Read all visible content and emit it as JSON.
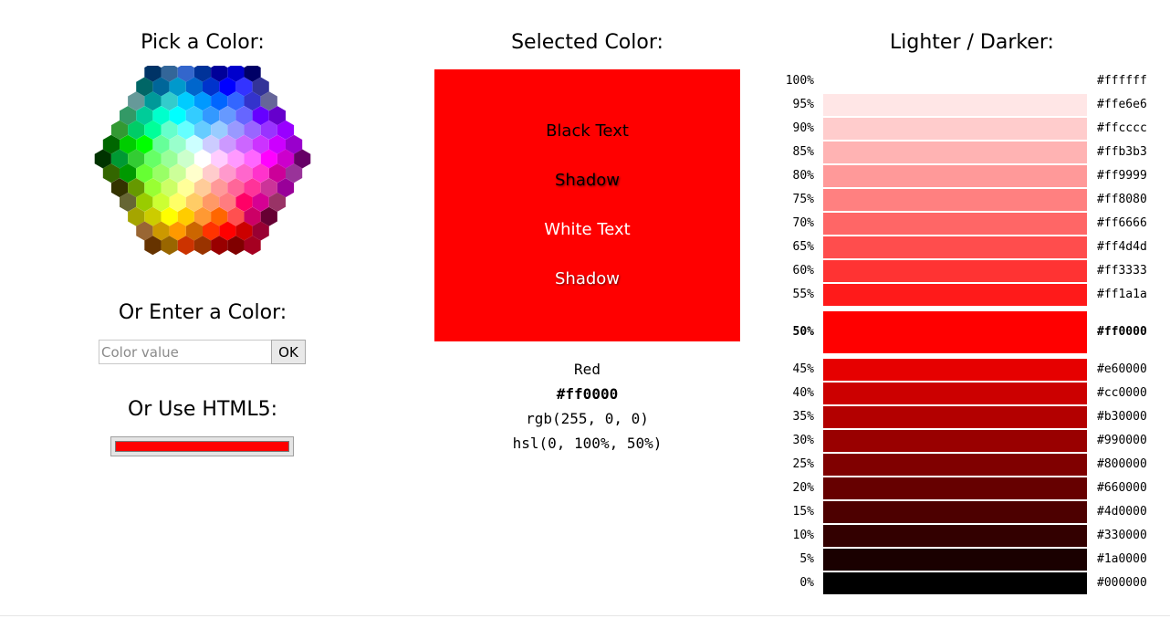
{
  "headings": {
    "pick": "Pick a Color:",
    "selected": "Selected Color:",
    "lighter_darker": "Lighter / Darker:",
    "enter": "Or Enter a Color:",
    "html5": "Or Use HTML5:"
  },
  "input": {
    "placeholder": "Color value",
    "value": "",
    "button_label": "OK"
  },
  "html5_picker": {
    "value": "#ff0000"
  },
  "selected": {
    "color": "#ff0000",
    "samples": [
      "Black Text",
      "Shadow",
      "White Text",
      "Shadow"
    ],
    "name": "Red",
    "hex": "#ff0000",
    "rgb": "rgb(255, 0, 0)",
    "hsl": "hsl(0, 100%, 50%)"
  },
  "colormap": {
    "selected_color": "#ff0000",
    "rows": [
      [
        "#003366",
        "#336699",
        "#3366cc",
        "#003399",
        "#000099",
        "#0000cc",
        "#000066"
      ],
      [
        "#006666",
        "#006699",
        "#0099cc",
        "#0066cc",
        "#0033cc",
        "#0000ff",
        "#3333ff",
        "#333399"
      ],
      [
        "#669999",
        "#009999",
        "#33cccc",
        "#00ccff",
        "#0099ff",
        "#0066ff",
        "#3366ff",
        "#3333cc",
        "#666699"
      ],
      [
        "#339966",
        "#00cc99",
        "#00ffcc",
        "#00ffff",
        "#33ccff",
        "#3399ff",
        "#6699ff",
        "#6666ff",
        "#6600ff",
        "#6600cc"
      ],
      [
        "#339933",
        "#00cc66",
        "#00ff99",
        "#66ffcc",
        "#66ffff",
        "#66ccff",
        "#99ccff",
        "#9999ff",
        "#9966ff",
        "#9933ff",
        "#9900ff"
      ],
      [
        "#006600",
        "#00cc00",
        "#00ff00",
        "#66ff99",
        "#99ffcc",
        "#ccffff",
        "#ccccff",
        "#cc99ff",
        "#cc66ff",
        "#cc33ff",
        "#cc00ff",
        "#9900cc"
      ],
      [
        "#003300",
        "#009933",
        "#33cc33",
        "#66ff66",
        "#99ff99",
        "#ccffcc",
        "#ffffff",
        "#ffccff",
        "#ff99ff",
        "#ff66ff",
        "#ff00ff",
        "#cc00cc",
        "#660066"
      ],
      [
        "#336600",
        "#009900",
        "#66ff33",
        "#99ff66",
        "#ccff99",
        "#ffffcc",
        "#ffcccc",
        "#ff99cc",
        "#ff66cc",
        "#ff33cc",
        "#cc0099",
        "#993399"
      ],
      [
        "#333300",
        "#669900",
        "#99ff33",
        "#ccff66",
        "#ffff99",
        "#ffcc99",
        "#ff9999",
        "#ff6699",
        "#ff3399",
        "#cc3399",
        "#990099"
      ],
      [
        "#666633",
        "#99cc00",
        "#ccff33",
        "#ffff66",
        "#ffcc66",
        "#ff9966",
        "#ff7c80",
        "#ff0066",
        "#d60093",
        "#993366"
      ],
      [
        "#a5a500",
        "#cccc00",
        "#ffff00",
        "#ffcc00",
        "#ff9933",
        "#ff6600",
        "#ff5050",
        "#cc0066",
        "#660033"
      ],
      [
        "#996633",
        "#cc9900",
        "#ff9900",
        "#cc6600",
        "#ff3300",
        "#ff0000",
        "#cc0000",
        "#990033"
      ],
      [
        "#663300",
        "#996600",
        "#cc3300",
        "#993300",
        "#990000",
        "#800000",
        "#a50021"
      ]
    ]
  },
  "shades": [
    {
      "pct": "100%",
      "hex": "#ffffff"
    },
    {
      "pct": "95%",
      "hex": "#ffe6e6"
    },
    {
      "pct": "90%",
      "hex": "#ffcccc"
    },
    {
      "pct": "85%",
      "hex": "#ffb3b3"
    },
    {
      "pct": "80%",
      "hex": "#ff9999"
    },
    {
      "pct": "75%",
      "hex": "#ff8080"
    },
    {
      "pct": "70%",
      "hex": "#ff6666"
    },
    {
      "pct": "65%",
      "hex": "#ff4d4d"
    },
    {
      "pct": "60%",
      "hex": "#ff3333"
    },
    {
      "pct": "55%",
      "hex": "#ff1a1a"
    },
    {
      "pct": "50%",
      "hex": "#ff0000",
      "current": true
    },
    {
      "pct": "45%",
      "hex": "#e60000"
    },
    {
      "pct": "40%",
      "hex": "#cc0000"
    },
    {
      "pct": "35%",
      "hex": "#b30000"
    },
    {
      "pct": "30%",
      "hex": "#990000"
    },
    {
      "pct": "25%",
      "hex": "#800000"
    },
    {
      "pct": "20%",
      "hex": "#660000"
    },
    {
      "pct": "15%",
      "hex": "#4d0000"
    },
    {
      "pct": "10%",
      "hex": "#330000"
    },
    {
      "pct": "5%",
      "hex": "#1a0000"
    },
    {
      "pct": "0%",
      "hex": "#000000"
    }
  ]
}
